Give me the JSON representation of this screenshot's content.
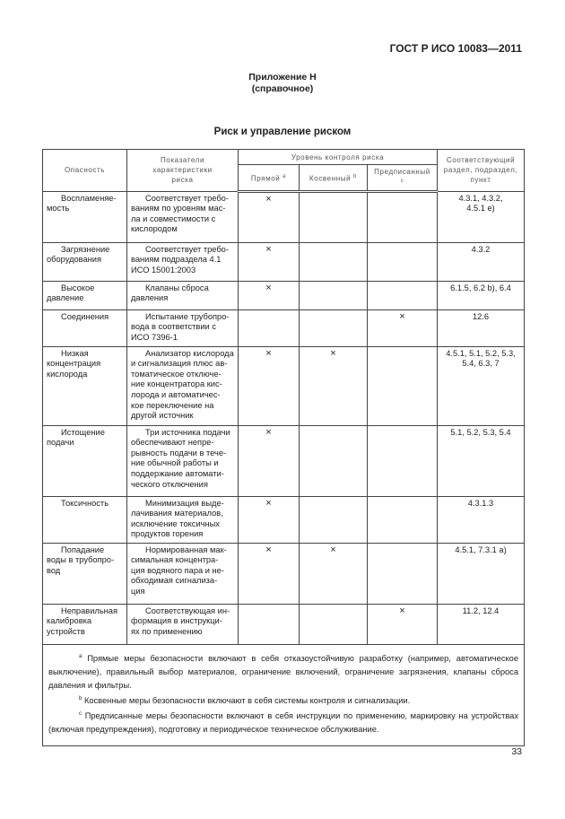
{
  "header": {
    "standard": "ГОСТ Р ИСО 10083—2011"
  },
  "annex": {
    "title": "Приложение Н",
    "note": "(справочное)"
  },
  "table_title": "Риск и управление риском",
  "columns": {
    "hazard": "Опасность",
    "indicators": "Показатели\nхарактеристики\nриска",
    "level": "Уровень контроля риска",
    "direct": "Прямой",
    "direct_sup": "a",
    "indirect": "Косвенный",
    "indirect_sup": "b",
    "prescribed": "Предписанный",
    "prescribed_sup": "c",
    "section": "Соответствующий\nраздел, подраздел,\nпункт"
  },
  "rows": [
    {
      "hazard": "Воспламеняе-\nмость",
      "desc": "Соответствует требо-\nваниям по уровням мас-\nла и совместимости с\nкислородом",
      "direct": "×",
      "indirect": "",
      "prescribed": "",
      "section": "4.3.1, 4.3.2,\n4.5.1 е)"
    },
    {
      "hazard": "Загрязнение\nоборудования",
      "desc": "Соответствует требо-\nваниям подраздела 4.1\nИСО 15001:2003",
      "direct": "×",
      "indirect": "",
      "prescribed": "",
      "section": "4.3.2"
    },
    {
      "hazard": "Высокое\nдавление",
      "desc": "Клапаны сброса\nдавления",
      "direct": "×",
      "indirect": "",
      "prescribed": "",
      "section": "6.1.5, 6.2 b), 6.4"
    },
    {
      "hazard": "Соединения",
      "desc": "Испытание трубопро-\nвода в соответствии с\nИСО 7396-1",
      "direct": "",
      "indirect": "",
      "prescribed": "×",
      "section": "12.6"
    },
    {
      "hazard": "Низкая\nконцентрация\nкислорода",
      "desc": "Анализатор кислорода\nи сигнализация плюс ав-\nтоматическое отключе-\nние концентратора кис-\nлорода и автоматичес-\nкое переключение на\nдругой источник",
      "direct": "×",
      "indirect": "×",
      "prescribed": "",
      "section": "4.5.1, 5.1, 5.2, 5.3,\n5.4, 6.3, 7"
    },
    {
      "hazard": "Истощение\nподачи",
      "desc": "Три источника подачи\nобеспечивают непре-\nрывность подачи в тече-\nние обычной работы и\nподдержание автомати-\nческого отключения",
      "direct": "×",
      "indirect": "",
      "prescribed": "",
      "section": "5.1, 5.2, 5.3, 5.4"
    },
    {
      "hazard": "Токсичность",
      "desc": "Минимизация выде-\nлачивания материалов,\nисключение токсичных\nпродуктов горения",
      "direct": "×",
      "indirect": "",
      "prescribed": "",
      "section": "4.3.1.3"
    },
    {
      "hazard": "Попадание\nводы в трубопро-\nвод",
      "desc": "Нормированная мак-\nсимальная концентра-\nция водяного пара и не-\nобходимая сигнализа-\nция",
      "direct": "×",
      "indirect": "×",
      "prescribed": "",
      "section": "4.5.1, 7.3.1 а)"
    },
    {
      "hazard": "Неправильная\nкалибровка\nустройств",
      "desc": "Соответствующая ин-\nформация в инструкци-\nях по применению",
      "direct": "",
      "indirect": "",
      "prescribed": "×",
      "section": "11.2, 12.4"
    }
  ],
  "footnotes": [
    {
      "mark": "a",
      "text": "Прямые меры безопасности включают в себя отказоустойчивую разработку (например, автоматическое выключение), правильный выбор материалов, ограничение включений, ограничение загрязнения, клапаны сброса давления и фильтры."
    },
    {
      "mark": "b",
      "text": "Косвенные меры безопасности включают в себя системы контроля и сигнализации."
    },
    {
      "mark": "c",
      "text": "Предписанные меры безопасности включают в себя инструкции по применению, маркировку на устройствах (включая предупреждения), подготовку и периодическое техническое обслуживание."
    }
  ],
  "page_number": "33"
}
